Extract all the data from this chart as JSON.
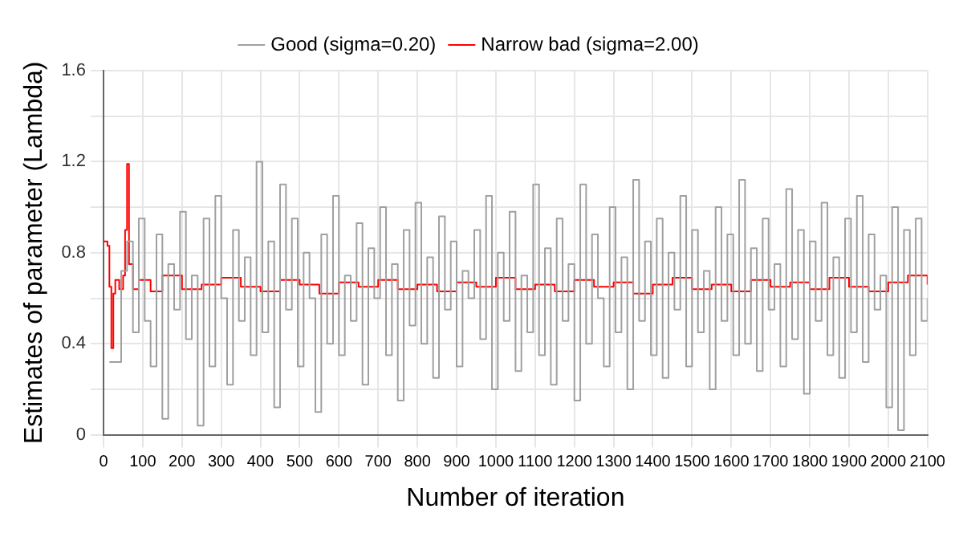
{
  "chart_data": {
    "type": "step",
    "xlabel": "Number of iteration",
    "ylabel": "Estimates of parameter (Lambda)",
    "xlim": [
      0,
      2100
    ],
    "ylim": [
      0,
      1.6
    ],
    "xticks": [
      0,
      100,
      200,
      300,
      400,
      500,
      600,
      700,
      800,
      900,
      1000,
      1100,
      1200,
      1300,
      1400,
      1500,
      1600,
      1700,
      1800,
      1900,
      2000,
      2100
    ],
    "yticks": [
      0,
      {
        "value": 0.2,
        "label": null
      },
      0.4,
      {
        "value": 0.6,
        "label": null
      },
      0.8,
      {
        "value": 1.0,
        "label": null
      },
      1.2,
      {
        "value": 1.4,
        "label": null
      },
      1.6
    ],
    "grid": true,
    "legend": "top",
    "marker": "none",
    "series": [
      {
        "name": "Good (sigma=0.20)",
        "color": "#a0a0a0",
        "x": [
          15,
          30,
          45,
          60,
          75,
          90,
          105,
          120,
          135,
          150,
          165,
          180,
          195,
          210,
          225,
          240,
          255,
          270,
          285,
          300,
          315,
          330,
          345,
          360,
          375,
          390,
          405,
          420,
          435,
          450,
          465,
          480,
          495,
          510,
          525,
          540,
          555,
          570,
          585,
          600,
          615,
          630,
          645,
          660,
          675,
          690,
          705,
          720,
          735,
          750,
          765,
          780,
          795,
          810,
          825,
          840,
          855,
          870,
          885,
          900,
          915,
          930,
          945,
          960,
          975,
          990,
          1005,
          1020,
          1035,
          1050,
          1065,
          1080,
          1095,
          1110,
          1125,
          1140,
          1155,
          1170,
          1185,
          1200,
          1215,
          1230,
          1245,
          1260,
          1275,
          1290,
          1305,
          1320,
          1335,
          1350,
          1365,
          1380,
          1395,
          1410,
          1425,
          1440,
          1455,
          1470,
          1485,
          1500,
          1515,
          1530,
          1545,
          1560,
          1575,
          1590,
          1605,
          1620,
          1635,
          1650,
          1665,
          1680,
          1695,
          1710,
          1725,
          1740,
          1755,
          1770,
          1785,
          1800,
          1815,
          1830,
          1845,
          1860,
          1875,
          1890,
          1905,
          1920,
          1935,
          1950,
          1965,
          1980,
          1995,
          2010,
          2025,
          2040,
          2055,
          2070,
          2085,
          2100
        ],
        "values": [
          0.32,
          0.32,
          0.72,
          0.85,
          0.45,
          0.95,
          0.5,
          0.3,
          0.88,
          0.07,
          0.75,
          0.55,
          0.98,
          0.42,
          0.7,
          0.04,
          0.95,
          0.3,
          1.05,
          0.6,
          0.22,
          0.9,
          0.5,
          0.78,
          0.35,
          1.2,
          0.45,
          0.85,
          0.12,
          1.1,
          0.55,
          0.95,
          0.3,
          0.8,
          0.6,
          0.1,
          0.88,
          0.4,
          1.05,
          0.35,
          0.7,
          0.5,
          0.93,
          0.22,
          0.82,
          0.6,
          1.0,
          0.35,
          0.75,
          0.15,
          0.9,
          0.48,
          1.02,
          0.4,
          0.78,
          0.25,
          0.96,
          0.55,
          0.85,
          0.3,
          0.72,
          0.6,
          0.9,
          0.42,
          1.05,
          0.2,
          0.8,
          0.5,
          0.98,
          0.28,
          0.7,
          0.45,
          1.1,
          0.35,
          0.82,
          0.22,
          0.95,
          0.5,
          0.75,
          0.15,
          1.1,
          0.4,
          0.88,
          0.6,
          0.3,
          1.0,
          0.45,
          0.78,
          0.2,
          1.12,
          0.5,
          0.85,
          0.35,
          0.95,
          0.25,
          0.8,
          0.55,
          1.05,
          0.3,
          0.9,
          0.45,
          0.72,
          0.2,
          1.0,
          0.5,
          0.88,
          0.35,
          1.12,
          0.4,
          0.82,
          0.28,
          0.95,
          0.55,
          0.75,
          0.3,
          1.08,
          0.42,
          0.9,
          0.18,
          0.85,
          0.5,
          1.02,
          0.35,
          0.78,
          0.25,
          0.95,
          0.45,
          1.05,
          0.32,
          0.88,
          0.55,
          0.7,
          0.12,
          1.0,
          0.02,
          0.9,
          0.35,
          0.95,
          0.5,
          0.6
        ]
      },
      {
        "name": "Narrow bad (sigma=2.00)",
        "color": "#ff0000",
        "x": [
          0,
          10,
          15,
          20,
          25,
          30,
          40,
          50,
          55,
          60,
          65,
          75,
          90,
          120,
          150,
          200,
          250,
          300,
          350,
          400,
          450,
          500,
          550,
          600,
          650,
          700,
          750,
          800,
          850,
          900,
          950,
          1000,
          1050,
          1100,
          1150,
          1200,
          1250,
          1300,
          1350,
          1400,
          1450,
          1500,
          1550,
          1600,
          1650,
          1700,
          1750,
          1800,
          1850,
          1900,
          1950,
          2000,
          2050,
          2100
        ],
        "values": [
          0.85,
          0.83,
          0.65,
          0.38,
          0.62,
          0.68,
          0.64,
          0.7,
          0.9,
          1.19,
          0.75,
          0.64,
          0.68,
          0.63,
          0.7,
          0.64,
          0.66,
          0.69,
          0.65,
          0.63,
          0.68,
          0.66,
          0.62,
          0.67,
          0.65,
          0.68,
          0.64,
          0.66,
          0.63,
          0.67,
          0.65,
          0.69,
          0.64,
          0.66,
          0.63,
          0.68,
          0.65,
          0.67,
          0.62,
          0.66,
          0.69,
          0.64,
          0.66,
          0.63,
          0.68,
          0.65,
          0.67,
          0.64,
          0.69,
          0.65,
          0.63,
          0.67,
          0.7,
          0.66
        ]
      }
    ]
  }
}
